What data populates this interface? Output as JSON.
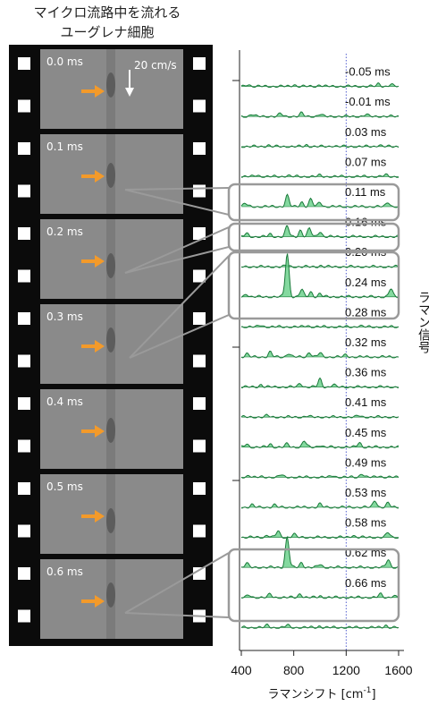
{
  "title": {
    "line1": "マイクロ流路中を流れる",
    "line2": "ユーグレナ細胞"
  },
  "film": {
    "flow_speed_label": "20 cm/s",
    "frames": [
      "0.0 ms",
      "0.1 ms",
      "0.2 ms",
      "0.3 ms",
      "0.4 ms",
      "0.5 ms",
      "0.6 ms"
    ]
  },
  "colors": {
    "spectrum_line": "#1a7a3a",
    "spectrum_fill": "#6fd28e",
    "arrow": "#f39a2a",
    "highlight_box": "#9a9a9a",
    "reference_line": "#5560d0"
  },
  "chart_data": {
    "type": "line",
    "xlabel": "ラマンシフト [cm",
    "xlabel_superscript": "-1",
    "xlabel_suffix": "]",
    "ylabel": "ラマン信号",
    "x_ticks": [
      "400",
      "800",
      "1200",
      "1600"
    ],
    "xlim": [
      400,
      1600
    ],
    "reference_line_x": 1200,
    "series": [
      {
        "label": "-0.05 ms",
        "peaks": [
          [
            450,
            0.3
          ],
          [
            800,
            0.25
          ],
          [
            1000,
            0.2
          ],
          [
            1450,
            0.35
          ],
          [
            1540,
            0.25
          ]
        ]
      },
      {
        "label": "-0.01 ms",
        "peaks": [
          [
            480,
            0.3
          ],
          [
            700,
            0.35
          ],
          [
            860,
            0.4
          ],
          [
            1000,
            0.3
          ],
          [
            1350,
            0.25
          ]
        ]
      },
      {
        "label": "0.03 ms",
        "peaks": [
          [
            600,
            0.2
          ],
          [
            900,
            0.2
          ],
          [
            1100,
            0.15
          ],
          [
            1450,
            0.25
          ]
        ]
      },
      {
        "label": "0.07 ms",
        "peaks": [
          [
            520,
            0.2
          ],
          [
            750,
            0.2
          ],
          [
            1000,
            0.15
          ],
          [
            1500,
            0.2
          ]
        ]
      },
      {
        "label": "0.11 ms",
        "peaks": [
          [
            430,
            0.4
          ],
          [
            750,
            1.4
          ],
          [
            860,
            0.6
          ],
          [
            930,
            0.9
          ],
          [
            1000,
            0.6
          ],
          [
            1520,
            0.6
          ]
        ]
      },
      {
        "label": "0.16 ms",
        "peaks": [
          [
            440,
            0.4
          ],
          [
            620,
            0.3
          ],
          [
            750,
            1.3
          ],
          [
            850,
            0.8
          ],
          [
            920,
            1.0
          ],
          [
            1000,
            0.7
          ]
        ]
      },
      {
        "label": "0.20 ms",
        "peaks": [
          [
            750,
            0.2
          ],
          [
            1000,
            0.15
          ]
        ]
      },
      {
        "label": "0.24 ms",
        "peaks": [
          [
            440,
            0.4
          ],
          [
            750,
            5.4
          ],
          [
            860,
            0.9
          ],
          [
            930,
            0.6
          ],
          [
            1000,
            0.4
          ],
          [
            1540,
            1.0
          ]
        ]
      },
      {
        "label": "0.28 ms",
        "peaks": [
          [
            550,
            0.25
          ],
          [
            900,
            0.2
          ],
          [
            1300,
            0.2
          ]
        ]
      },
      {
        "label": "0.32 ms",
        "peaks": [
          [
            440,
            0.4
          ],
          [
            620,
            0.6
          ],
          [
            760,
            0.5
          ],
          [
            920,
            0.6
          ],
          [
            1000,
            0.5
          ],
          [
            1200,
            0.3
          ]
        ]
      },
      {
        "label": "0.36 ms",
        "peaks": [
          [
            550,
            0.3
          ],
          [
            850,
            0.5
          ],
          [
            1000,
            1.0
          ],
          [
            1100,
            0.3
          ]
        ]
      },
      {
        "label": "0.41 ms",
        "peaks": [
          [
            600,
            0.2
          ],
          [
            900,
            0.15
          ],
          [
            1300,
            0.2
          ]
        ]
      },
      {
        "label": "0.45 ms",
        "peaks": [
          [
            440,
            0.4
          ],
          [
            620,
            0.4
          ],
          [
            750,
            0.4
          ],
          [
            880,
            0.8
          ],
          [
            1000,
            0.3
          ],
          [
            1300,
            0.6
          ]
        ]
      },
      {
        "label": "0.49 ms",
        "peaks": [
          [
            460,
            0.3
          ],
          [
            700,
            0.3
          ],
          [
            1100,
            0.25
          ],
          [
            1320,
            0.5
          ],
          [
            1450,
            0.2
          ]
        ]
      },
      {
        "label": "0.53 ms",
        "peaks": [
          [
            480,
            0.3
          ],
          [
            650,
            0.3
          ],
          [
            1000,
            0.4
          ],
          [
            1420,
            0.9
          ],
          [
            1520,
            0.5
          ]
        ]
      },
      {
        "label": "0.58 ms",
        "peaks": [
          [
            600,
            0.3
          ],
          [
            680,
            0.8
          ],
          [
            800,
            0.4
          ],
          [
            1250,
            0.3
          ],
          [
            1520,
            0.6
          ]
        ]
      },
      {
        "label": "0.62 ms",
        "peaks": [
          [
            440,
            0.5
          ],
          [
            750,
            3.8
          ],
          [
            860,
            0.6
          ],
          [
            1000,
            0.4
          ],
          [
            1520,
            1.0
          ]
        ]
      },
      {
        "label": "0.66 ms",
        "peaks": [
          [
            460,
            0.3
          ],
          [
            620,
            0.4
          ],
          [
            850,
            0.5
          ],
          [
            1000,
            0.2
          ],
          [
            1460,
            0.4
          ],
          [
            1560,
            0.3
          ]
        ]
      },
      {
        "label": "",
        "peaks": [
          [
            600,
            0.3
          ],
          [
            750,
            0.3
          ],
          [
            1000,
            0.2
          ],
          [
            1500,
            0.3
          ]
        ]
      }
    ]
  }
}
